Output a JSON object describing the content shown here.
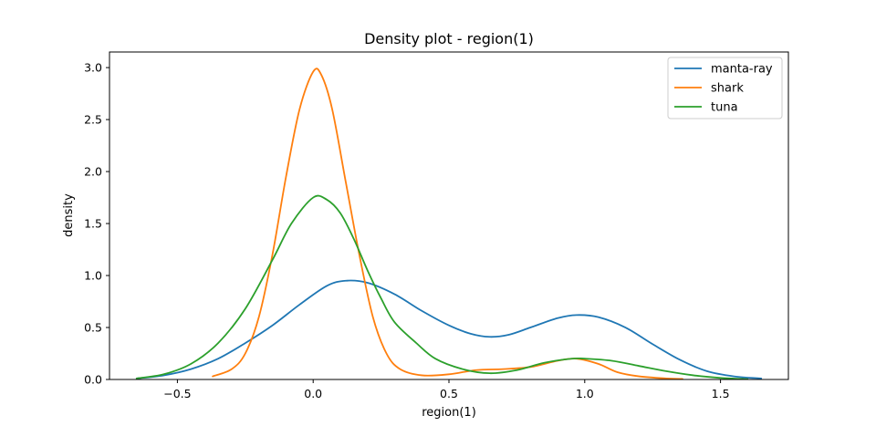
{
  "chart_data": {
    "type": "line",
    "title": "Density plot - region(1)",
    "xlabel": "region(1)",
    "ylabel": "density",
    "xlim": [
      -0.75,
      1.75
    ],
    "ylim": [
      0,
      3.15
    ],
    "xticks": [
      -0.5,
      0.0,
      0.5,
      1.0,
      1.5
    ],
    "xtick_labels": [
      "−0.5",
      "0.0",
      "0.5",
      "1.0",
      "1.5"
    ],
    "yticks": [
      0.0,
      0.5,
      1.0,
      1.5,
      2.0,
      2.5,
      3.0
    ],
    "ytick_labels": [
      "0.0",
      "0.5",
      "1.0",
      "1.5",
      "2.0",
      "2.5",
      "3.0"
    ],
    "grid": false,
    "legend_position": "top-right",
    "series": [
      {
        "name": "manta-ray",
        "color": "#1f77b4",
        "points": [
          [
            -0.65,
            0.01
          ],
          [
            -0.55,
            0.04
          ],
          [
            -0.45,
            0.1
          ],
          [
            -0.35,
            0.2
          ],
          [
            -0.25,
            0.35
          ],
          [
            -0.15,
            0.52
          ],
          [
            -0.05,
            0.72
          ],
          [
            0.05,
            0.9
          ],
          [
            0.12,
            0.95
          ],
          [
            0.2,
            0.93
          ],
          [
            0.3,
            0.82
          ],
          [
            0.4,
            0.66
          ],
          [
            0.5,
            0.52
          ],
          [
            0.58,
            0.44
          ],
          [
            0.65,
            0.41
          ],
          [
            0.72,
            0.43
          ],
          [
            0.8,
            0.5
          ],
          [
            0.9,
            0.59
          ],
          [
            0.97,
            0.62
          ],
          [
            1.05,
            0.6
          ],
          [
            1.15,
            0.5
          ],
          [
            1.25,
            0.34
          ],
          [
            1.35,
            0.19
          ],
          [
            1.45,
            0.08
          ],
          [
            1.55,
            0.03
          ],
          [
            1.65,
            0.01
          ]
        ]
      },
      {
        "name": "shark",
        "color": "#ff7f0e",
        "points": [
          [
            -0.37,
            0.03
          ],
          [
            -0.3,
            0.1
          ],
          [
            -0.25,
            0.25
          ],
          [
            -0.2,
            0.6
          ],
          [
            -0.15,
            1.2
          ],
          [
            -0.1,
            1.95
          ],
          [
            -0.05,
            2.6
          ],
          [
            0.0,
            2.96
          ],
          [
            0.03,
            2.93
          ],
          [
            0.07,
            2.6
          ],
          [
            0.12,
            1.9
          ],
          [
            0.17,
            1.2
          ],
          [
            0.22,
            0.6
          ],
          [
            0.27,
            0.25
          ],
          [
            0.32,
            0.1
          ],
          [
            0.4,
            0.04
          ],
          [
            0.5,
            0.05
          ],
          [
            0.6,
            0.09
          ],
          [
            0.7,
            0.1
          ],
          [
            0.8,
            0.12
          ],
          [
            0.9,
            0.18
          ],
          [
            0.97,
            0.2
          ],
          [
            1.05,
            0.15
          ],
          [
            1.12,
            0.07
          ],
          [
            1.2,
            0.03
          ],
          [
            1.3,
            0.01
          ],
          [
            1.36,
            0.005
          ]
        ]
      },
      {
        "name": "tuna",
        "color": "#2ca02c",
        "points": [
          [
            -0.65,
            0.01
          ],
          [
            -0.55,
            0.05
          ],
          [
            -0.45,
            0.15
          ],
          [
            -0.35,
            0.35
          ],
          [
            -0.25,
            0.68
          ],
          [
            -0.15,
            1.15
          ],
          [
            -0.08,
            1.5
          ],
          [
            0.0,
            1.75
          ],
          [
            0.05,
            1.73
          ],
          [
            0.1,
            1.6
          ],
          [
            0.15,
            1.35
          ],
          [
            0.2,
            1.05
          ],
          [
            0.25,
            0.78
          ],
          [
            0.3,
            0.55
          ],
          [
            0.38,
            0.35
          ],
          [
            0.45,
            0.2
          ],
          [
            0.55,
            0.1
          ],
          [
            0.65,
            0.06
          ],
          [
            0.75,
            0.09
          ],
          [
            0.85,
            0.16
          ],
          [
            0.95,
            0.2
          ],
          [
            1.0,
            0.2
          ],
          [
            1.1,
            0.18
          ],
          [
            1.2,
            0.13
          ],
          [
            1.3,
            0.08
          ],
          [
            1.4,
            0.04
          ],
          [
            1.5,
            0.015
          ],
          [
            1.6,
            0.003
          ]
        ]
      }
    ]
  }
}
